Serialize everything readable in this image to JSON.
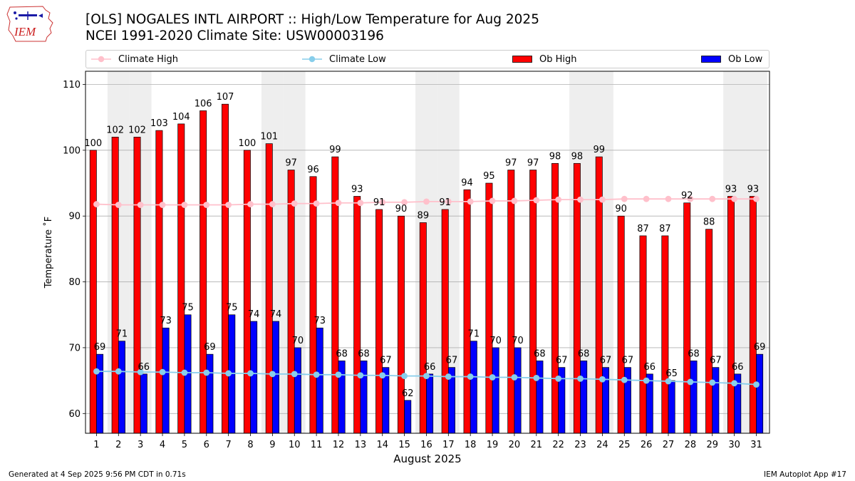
{
  "header": {
    "title_line1": "[OLS] NOGALES INTL AIRPORT :: High/Low Temperature for Aug 2025",
    "title_line2": "NCEI 1991-2020 Climate Site: USW00003196",
    "logo_text": "IEM"
  },
  "legend": {
    "climate_high": "Climate High",
    "climate_low": "Climate Low",
    "ob_high": "Ob High",
    "ob_low": "Ob Low"
  },
  "footer": {
    "generated": "Generated at 4 Sep 2025 9:56 PM CDT in 0.71s",
    "app": "IEM Autoplot App #17"
  },
  "colors": {
    "ob_high": "#ff0000",
    "ob_low": "#0000ff",
    "climate_high": "#ffc0cb",
    "climate_low": "#87ceeb",
    "weekend_shade": "#eeeeee",
    "grid": "#b0b0b0"
  },
  "chart_data": {
    "type": "bar",
    "xlabel": "August 2025",
    "ylabel": "Temperature $^\\circ$F",
    "ylabel_display": "Temperature ˚F",
    "ylim": [
      57,
      112
    ],
    "yticks": [
      60,
      70,
      80,
      90,
      100,
      110
    ],
    "grid": true,
    "legend_position": "top",
    "categories": [
      "1",
      "2",
      "3",
      "4",
      "5",
      "6",
      "7",
      "8",
      "9",
      "10",
      "11",
      "12",
      "13",
      "14",
      "15",
      "16",
      "17",
      "18",
      "19",
      "20",
      "21",
      "22",
      "23",
      "24",
      "25",
      "26",
      "27",
      "28",
      "29",
      "30",
      "31"
    ],
    "weekend_days": [
      2,
      3,
      9,
      10,
      16,
      17,
      23,
      24,
      30,
      31
    ],
    "series": [
      {
        "name": "Ob High",
        "kind": "bar",
        "values": [
          100,
          102,
          102,
          103,
          104,
          106,
          107,
          100,
          101,
          97,
          96,
          99,
          93,
          91,
          90,
          89,
          91,
          94,
          95,
          97,
          97,
          98,
          98,
          99,
          90,
          87,
          87,
          92,
          88,
          93,
          93
        ]
      },
      {
        "name": "Ob Low",
        "kind": "bar",
        "values": [
          69,
          71,
          66,
          73,
          75,
          69,
          75,
          74,
          74,
          70,
          73,
          68,
          68,
          67,
          62,
          66,
          67,
          71,
          70,
          70,
          68,
          67,
          68,
          67,
          67,
          66,
          65,
          68,
          67,
          66,
          69
        ]
      },
      {
        "name": "Climate High",
        "kind": "line",
        "values": [
          91.8,
          91.7,
          91.7,
          91.7,
          91.7,
          91.7,
          91.7,
          91.8,
          91.8,
          91.9,
          91.9,
          92.0,
          92.0,
          92.1,
          92.1,
          92.2,
          92.2,
          92.2,
          92.3,
          92.3,
          92.4,
          92.5,
          92.5,
          92.5,
          92.6,
          92.6,
          92.6,
          92.6,
          92.6,
          92.6,
          92.6
        ]
      },
      {
        "name": "Climate Low",
        "kind": "line",
        "values": [
          66.4,
          66.4,
          66.3,
          66.3,
          66.2,
          66.2,
          66.1,
          66.1,
          66.0,
          66.0,
          65.9,
          65.9,
          65.8,
          65.8,
          65.7,
          65.7,
          65.6,
          65.6,
          65.5,
          65.5,
          65.4,
          65.3,
          65.3,
          65.2,
          65.1,
          65.0,
          64.9,
          64.8,
          64.7,
          64.6,
          64.4
        ]
      }
    ]
  }
}
